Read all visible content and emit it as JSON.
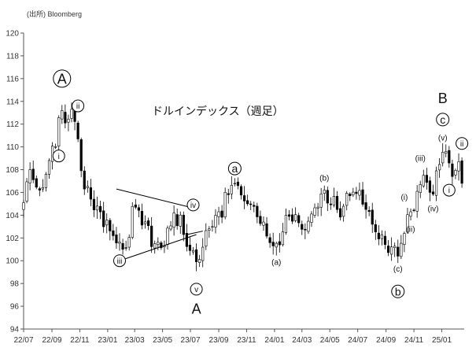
{
  "chart_data": {
    "type": "candlestick",
    "title": "ドルインデックス（週足）",
    "source": "(出所) Bloomberg",
    "ylim": [
      94,
      120
    ],
    "y_ticks": [
      "94",
      "96",
      "98",
      "100",
      "102",
      "104",
      "106",
      "108",
      "110",
      "112",
      "114",
      "116",
      "118",
      "120"
    ],
    "x_ticks": [
      "22/07",
      "22/09",
      "22/11",
      "23/01",
      "23/03",
      "23/05",
      "23/07",
      "23/09",
      "23/11",
      "24/01",
      "24/03",
      "24/05",
      "24/07",
      "24/09",
      "24/11",
      "25/01"
    ],
    "grid": false,
    "colors": {
      "up": "#ffffff",
      "down": "#000000",
      "outline": "#000000"
    },
    "anchors": [
      {
        "date": "2022-07-01",
        "close": 105.1
      },
      {
        "date": "2022-07-15",
        "close": 108.0
      },
      {
        "date": "2022-08-05",
        "close": 106.2
      },
      {
        "date": "2022-08-26",
        "close": 108.8
      },
      {
        "date": "2022-09-23",
        "close": 113.2
      },
      {
        "date": "2022-09-30",
        "close": 112.1
      },
      {
        "date": "2022-10-14",
        "close": 113.3
      },
      {
        "date": "2022-10-28",
        "close": 110.7
      },
      {
        "date": "2022-11-11",
        "close": 106.3
      },
      {
        "date": "2022-12-09",
        "close": 104.8
      },
      {
        "date": "2023-01-13",
        "close": 102.2
      },
      {
        "date": "2023-02-03",
        "close": 101.0
      },
      {
        "date": "2023-03-03",
        "close": 104.7
      },
      {
        "date": "2023-04-14",
        "close": 101.5
      },
      {
        "date": "2023-05-05",
        "close": 101.3
      },
      {
        "date": "2023-05-26",
        "close": 104.2
      },
      {
        "date": "2023-06-16",
        "close": 102.3
      },
      {
        "date": "2023-07-14",
        "close": 99.9
      },
      {
        "date": "2023-08-11",
        "close": 102.8
      },
      {
        "date": "2023-09-01",
        "close": 104.3
      },
      {
        "date": "2023-10-06",
        "close": 106.8
      },
      {
        "date": "2023-11-03",
        "close": 105.0
      },
      {
        "date": "2023-12-08",
        "close": 103.4
      },
      {
        "date": "2023-12-29",
        "close": 101.3
      },
      {
        "date": "2024-02-02",
        "close": 103.9
      },
      {
        "date": "2024-03-08",
        "close": 102.7
      },
      {
        "date": "2024-04-19",
        "close": 106.2
      },
      {
        "date": "2024-05-17",
        "close": 104.5
      },
      {
        "date": "2024-06-28",
        "close": 105.9
      },
      {
        "date": "2024-08-02",
        "close": 103.2
      },
      {
        "date": "2024-09-27",
        "close": 100.4
      },
      {
        "date": "2024-10-25",
        "close": 104.3
      },
      {
        "date": "2024-11-22",
        "close": 107.5
      },
      {
        "date": "2024-12-06",
        "close": 106.0
      },
      {
        "date": "2025-01-10",
        "close": 109.6
      },
      {
        "date": "2025-01-24",
        "close": 107.4
      },
      {
        "date": "2025-02-07",
        "close": 108.7
      },
      {
        "date": "2025-02-14",
        "close": 106.8
      }
    ],
    "annotations": [
      {
        "text": "A",
        "date": "2022-09-23",
        "value": 116.0,
        "style": "big",
        "circled": true
      },
      {
        "text": "ii",
        "date": "2022-10-28",
        "value": 113.6,
        "style": "small",
        "circled": true
      },
      {
        "text": "i",
        "date": "2022-09-16",
        "value": 109.2,
        "style": "small",
        "circled": true
      },
      {
        "text": "iii",
        "date": "2023-01-27",
        "value": 100.0,
        "style": "small",
        "circled": true
      },
      {
        "text": "iv",
        "date": "2023-07-07",
        "value": 104.9,
        "style": "small",
        "circled": true
      },
      {
        "text": "v",
        "date": "2023-07-14",
        "value": 97.5,
        "style": "small",
        "circled": true
      },
      {
        "text": "A",
        "date": "2023-07-14",
        "value": 95.8,
        "style": "big",
        "circled": false
      },
      {
        "text": "a",
        "date": "2023-10-06",
        "value": 108.1,
        "style": "mid",
        "circled": true
      },
      {
        "text": "(a)",
        "date": "2024-01-05",
        "value": 99.9,
        "style": "small",
        "circled": false
      },
      {
        "text": "(b)",
        "date": "2024-04-19",
        "value": 107.3,
        "style": "small",
        "circled": false
      },
      {
        "text": "(c)",
        "date": "2024-09-27",
        "value": 99.3,
        "style": "small",
        "circled": false
      },
      {
        "text": "b",
        "date": "2024-09-27",
        "value": 97.3,
        "style": "mid",
        "circled": true
      },
      {
        "text": "(i)",
        "date": "2024-10-11",
        "value": 105.6,
        "style": "small",
        "circled": false
      },
      {
        "text": "(ii)",
        "date": "2024-10-25",
        "value": 102.8,
        "style": "small",
        "circled": false
      },
      {
        "text": "(iii)",
        "date": "2024-11-15",
        "value": 109.0,
        "style": "small",
        "circled": false
      },
      {
        "text": "(iv)",
        "date": "2024-12-13",
        "value": 104.6,
        "style": "small",
        "circled": false
      },
      {
        "text": "(v)",
        "date": "2025-01-03",
        "value": 110.8,
        "style": "small",
        "circled": false
      },
      {
        "text": "B",
        "date": "2025-01-03",
        "value": 114.3,
        "style": "big",
        "circled": false
      },
      {
        "text": "c",
        "date": "2025-01-03",
        "value": 112.4,
        "style": "mid",
        "circled": true
      },
      {
        "text": "i",
        "date": "2025-01-17",
        "value": 106.2,
        "style": "small",
        "circled": true
      },
      {
        "text": "ii",
        "date": "2025-02-14",
        "value": 110.3,
        "style": "small",
        "circled": true
      }
    ],
    "trendlines": [
      {
        "start": {
          "date": "2023-01-20",
          "value": 106.3
        },
        "end": {
          "date": "2023-06-30",
          "value": 104.7
        }
      },
      {
        "start": {
          "date": "2023-01-27",
          "value": 100.0
        },
        "end": {
          "date": "2023-07-14",
          "value": 102.3
        }
      },
      {
        "start": {
          "date": "2023-06-23",
          "value": 102.3
        },
        "end": {
          "date": "2023-07-28",
          "value": 102.6
        }
      }
    ]
  }
}
